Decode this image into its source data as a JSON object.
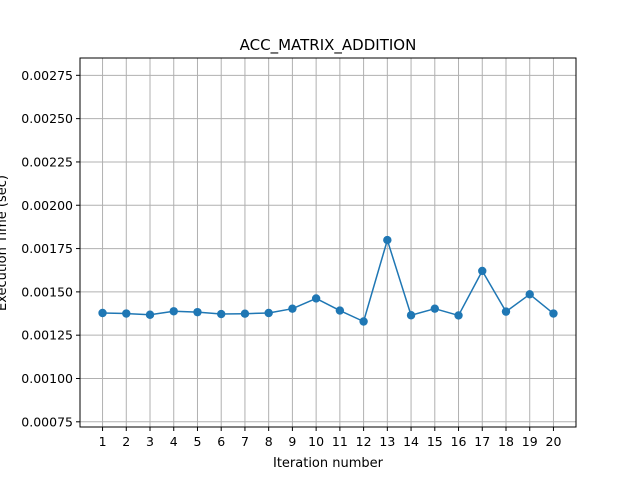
{
  "chart_data": {
    "type": "line",
    "title": "ACC_MATRIX_ADDITION",
    "xlabel": "Iteration number",
    "ylabel": "Execution Time (sec)",
    "x": [
      1,
      2,
      3,
      4,
      5,
      6,
      7,
      8,
      9,
      10,
      11,
      12,
      13,
      14,
      15,
      16,
      17,
      18,
      19,
      20
    ],
    "x_tick_labels": [
      "1",
      "2",
      "3",
      "4",
      "5",
      "6",
      "7",
      "8",
      "9",
      "10",
      "11",
      "12",
      "13",
      "14",
      "15",
      "16",
      "17",
      "18",
      "19",
      "20"
    ],
    "series": [
      {
        "values": [
          0.001378,
          0.001375,
          0.001368,
          0.001388,
          0.001383,
          0.001372,
          0.001374,
          0.001378,
          0.001403,
          0.001462,
          0.001392,
          0.001329,
          0.001799,
          0.001365,
          0.001403,
          0.001364,
          0.001621,
          0.001386,
          0.001486,
          0.001375
        ],
        "color": "#1f77b4"
      }
    ],
    "xlim": [
      0.05,
      20.95
    ],
    "ylim": [
      0.00072,
      0.00285
    ],
    "y_ticks": [
      0.00075,
      0.001,
      0.00125,
      0.0015,
      0.00175,
      0.002,
      0.00225,
      0.0025,
      0.00275
    ],
    "y_tick_labels": [
      "0.00075",
      "0.00100",
      "0.00125",
      "0.00150",
      "0.00175",
      "0.00200",
      "0.00225",
      "0.00250",
      "0.00275"
    ],
    "grid": true,
    "grid_color": "#b0b0b0"
  }
}
